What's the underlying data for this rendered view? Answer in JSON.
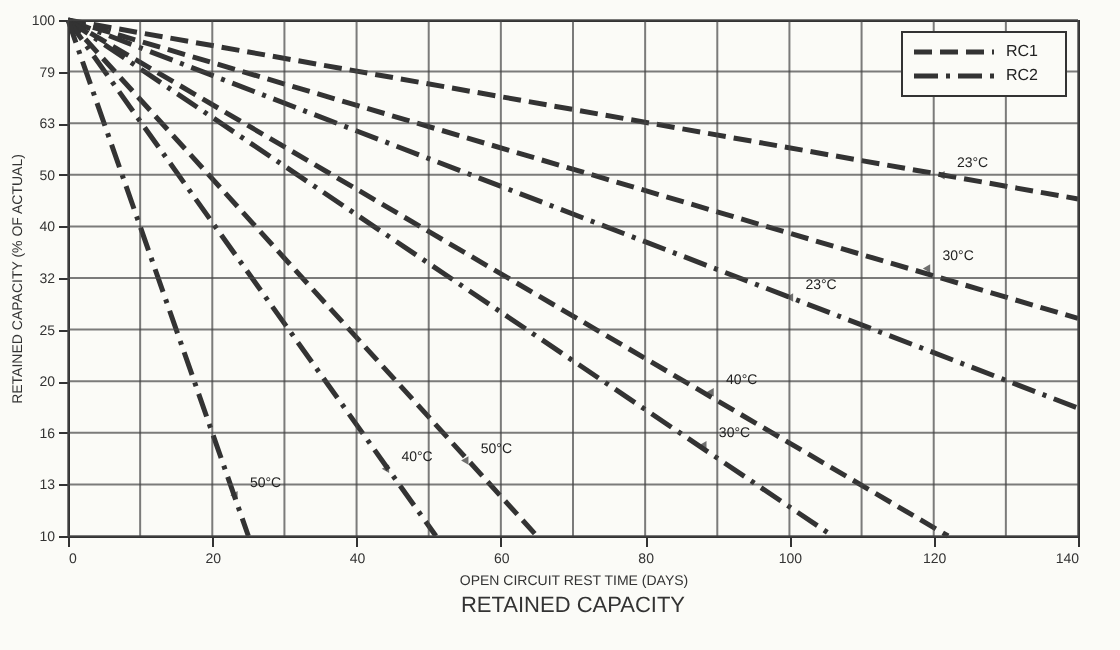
{
  "chart_data": {
    "type": "line",
    "title": "RETAINED CAPACITY",
    "xlabel": "OPEN CIRCUIT REST TIME (DAYS)",
    "ylabel": "RETAINED CAPACITY (% OF ACTUAL)",
    "log": "y",
    "grid": true,
    "legend": "top right",
    "marker": "none",
    "xlim": [
      0,
      140
    ],
    "xticks": [
      0,
      {
        "value": 10,
        "label": null
      },
      20,
      {
        "value": 30,
        "label": null
      },
      40,
      {
        "value": 50,
        "label": null
      },
      60,
      {
        "value": 70,
        "label": null
      },
      80,
      {
        "value": 90,
        "label": null
      },
      100,
      {
        "value": 110,
        "label": null
      },
      120,
      {
        "value": 130,
        "label": null
      },
      140
    ],
    "ylim": [
      10,
      100
    ],
    "yticks": [
      10,
      {
        "value": 12.59,
        "label": "13"
      },
      {
        "value": 15.85,
        "label": "16"
      },
      {
        "value": 19.95,
        "label": "20"
      },
      {
        "value": 25.12,
        "label": "25"
      },
      {
        "value": 31.62,
        "label": "32"
      },
      {
        "value": 39.81,
        "label": "40"
      },
      {
        "value": 50.12,
        "label": "50"
      },
      {
        "value": 63.1,
        "label": "63"
      },
      {
        "value": 79.43,
        "label": "79"
      },
      100
    ],
    "series": [
      {
        "name": "RC1",
        "color": "#333333",
        "line_style": "dashed",
        "x": [
          0,
          140
        ],
        "values": [
          100,
          45
        ]
      },
      {
        "color": "#333333",
        "line_style": "dashed",
        "x": [
          0,
          140
        ],
        "values": [
          100,
          26.4
        ]
      },
      {
        "name": "RC2",
        "color": "#333333",
        "line_style": "dashdot",
        "x": [
          0,
          140
        ],
        "values": [
          100,
          17.7
        ]
      },
      {
        "color": "#333333",
        "line_style": "dashed",
        "x": [
          0,
          122
        ],
        "values": [
          100,
          10
        ]
      },
      {
        "color": "#333333",
        "line_style": "dashdot",
        "x": [
          0,
          106
        ],
        "values": [
          100,
          10
        ]
      },
      {
        "color": "#333333",
        "line_style": "dashed",
        "x": [
          0,
          65
        ],
        "values": [
          100,
          10
        ]
      },
      {
        "color": "#333333",
        "line_style": "dashdot",
        "x": [
          0,
          51
        ],
        "values": [
          100,
          10
        ]
      },
      {
        "color": "#333333",
        "line_style": "dashdot",
        "x": [
          0,
          25
        ],
        "values": [
          100,
          10
        ]
      }
    ],
    "annotations": [
      {
        "text": "23°C",
        "x": 121,
        "y": 50
      },
      {
        "text": "30°C",
        "x": 119,
        "y": 33
      },
      {
        "text": "23°C",
        "x": 100,
        "y": 29
      },
      {
        "text": "40°C",
        "x": 89,
        "y": 19
      },
      {
        "text": "30°C",
        "x": 88,
        "y": 15
      },
      {
        "text": "50°C",
        "x": 55,
        "y": 14
      },
      {
        "text": "40°C",
        "x": 44,
        "y": 13.5
      },
      {
        "text": "50°C",
        "x": 23,
        "y": 12
      }
    ]
  }
}
